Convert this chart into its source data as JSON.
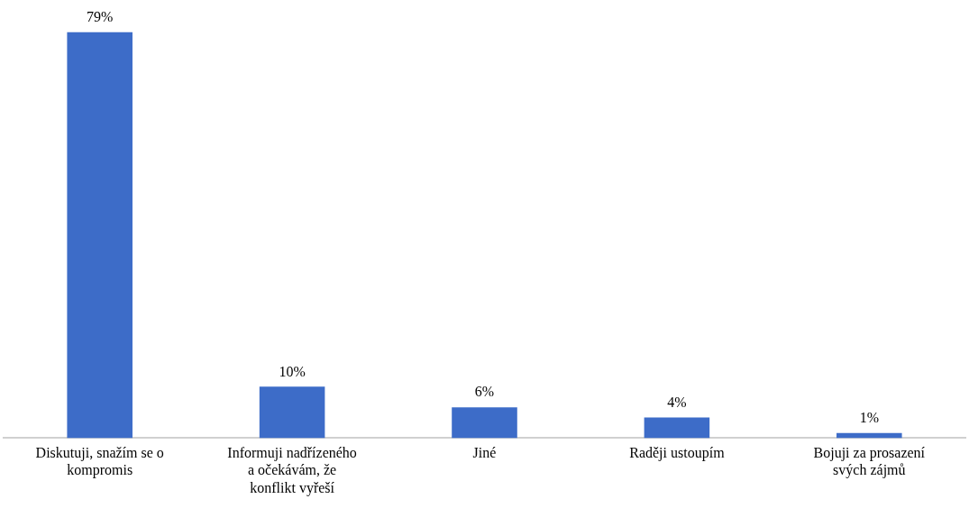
{
  "chart_data": {
    "type": "bar",
    "categories": [
      "Diskutuji, snažím se o kompromis",
      "Informuji nadřízeného a očekávám, že konflikt vyřeší",
      "Jiné",
      "Raději ustoupím",
      "Bojuji za prosazení svých zájmů"
    ],
    "values": [
      79,
      10,
      6,
      4,
      1
    ],
    "color": "#3d6cc8",
    "value_labels": [
      "79%",
      "10%",
      "6%",
      "4%",
      "1%"
    ],
    "grid": false,
    "legend": false
  }
}
